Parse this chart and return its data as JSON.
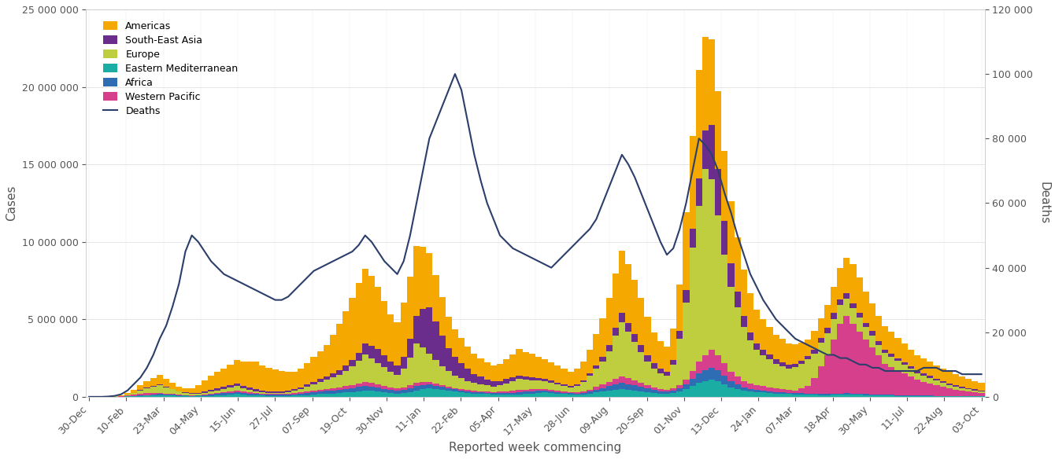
{
  "title": "",
  "xlabel": "Reported week commencing",
  "ylabel_left": "Cases",
  "ylabel_right": "Deaths",
  "bar_colors": {
    "Americas": "#F5A800",
    "South-East Asia": "#6B2D8B",
    "Europe": "#BFCE3E",
    "Eastern Mediterranean": "#1AADA4",
    "Africa": "#2E6DB4",
    "Western Pacific": "#D63F8C"
  },
  "deaths_color": "#2C3E6B",
  "ylim_cases": [
    0,
    25000000
  ],
  "ylim_deaths": [
    0,
    120000
  ],
  "background": "#FFFFFF",
  "tick_labels": [
    "30-Dec",
    "10-Feb",
    "23-Mar",
    "04-May",
    "15-Jun",
    "27-Jul",
    "07-Sep",
    "19-Oct",
    "30-Nov",
    "11-Jan",
    "22-Feb",
    "05-Apr",
    "17-May",
    "28-Jun",
    "09-Aug",
    "20-Sep",
    "01-Nov",
    "13-Dec",
    "24-Jan",
    "07-Mar",
    "18-Apr",
    "30-May",
    "11-Jul",
    "22-Aug",
    "03-Oct"
  ],
  "regions": [
    "Eastern Mediterranean",
    "Africa",
    "Western Pacific",
    "Europe",
    "South-East Asia",
    "Americas"
  ]
}
